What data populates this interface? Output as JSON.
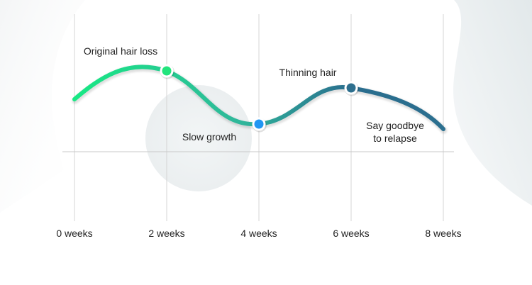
{
  "chart_data": {
    "type": "line",
    "x_tick_labels": [
      "0 weeks",
      "2 weeks",
      "4 weeks",
      "6 weeks",
      "8 weeks"
    ],
    "points": [
      {
        "x": 2,
        "label": "Original hair loss"
      },
      {
        "x": 4,
        "label": "Slow growth"
      },
      {
        "x": 6,
        "label": "Thinning hair"
      },
      {
        "x": 8,
        "label": "Say goodbye\nto relapse"
      }
    ],
    "xlim": [
      0,
      8
    ],
    "grid": "vertical",
    "colors": {
      "start": "#18e884",
      "mid": "#27a89c",
      "end": "#2a6d8e",
      "marker_green": "#22e47c",
      "marker_blue": "#2196f3",
      "marker_teal": "#2e6f8e"
    }
  }
}
